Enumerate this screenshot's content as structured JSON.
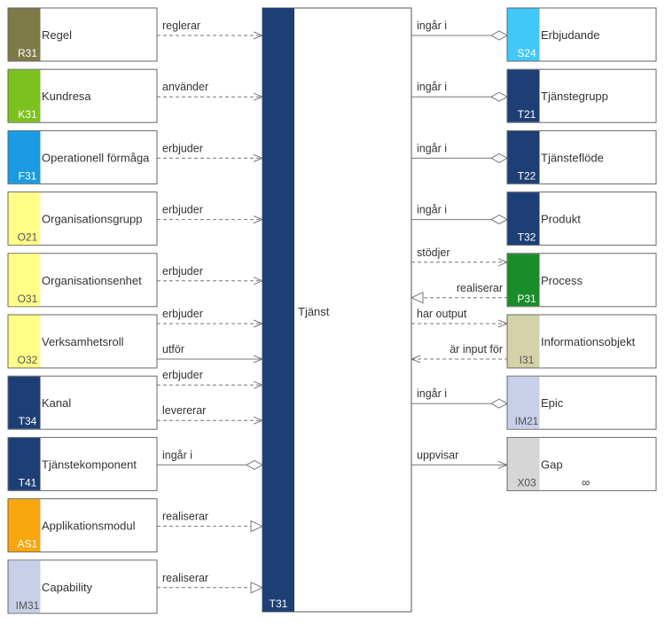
{
  "center": {
    "label": "Tjänst",
    "code": "T31",
    "color": "#1e3f75"
  },
  "left": [
    {
      "code": "R31",
      "label": "Regel",
      "color": "#7d7a48",
      "edges": [
        {
          "label": "reglerar",
          "type": "dashed-open"
        }
      ]
    },
    {
      "code": "K31",
      "label": "Kundresa",
      "color": "#7cc11d",
      "edges": [
        {
          "label": "använder",
          "type": "dashed-open"
        }
      ]
    },
    {
      "code": "F31",
      "label": "Operationell förmåga",
      "color": "#1a9be3",
      "edges": [
        {
          "label": "erbjuder",
          "type": "dashed-open"
        }
      ]
    },
    {
      "code": "O21",
      "label": "Organisationsgrupp",
      "color": "#ffff88",
      "dark": true,
      "edges": [
        {
          "label": "erbjuder",
          "type": "dashed-open"
        }
      ]
    },
    {
      "code": "O31",
      "label": "Organisationsenhet",
      "color": "#ffff88",
      "dark": true,
      "edges": [
        {
          "label": "erbjuder",
          "type": "dashed-open"
        }
      ]
    },
    {
      "code": "O32",
      "label": "Verksamhetsroll",
      "color": "#ffff88",
      "dark": true,
      "edges": [
        {
          "label": "erbjuder",
          "type": "dashed-open"
        },
        {
          "label": "utför",
          "type": "solid-open"
        }
      ]
    },
    {
      "code": "T34",
      "label": "Kanal",
      "color": "#1e3f75",
      "edges": [
        {
          "label": "erbjuder",
          "type": "dashed-open"
        },
        {
          "label": "levererar",
          "type": "dashed-open"
        }
      ]
    },
    {
      "code": "T41",
      "label": "Tjänstekomponent",
      "color": "#1e3f75",
      "edges": [
        {
          "label": "ingår i",
          "type": "solid-diamond"
        }
      ]
    },
    {
      "code": "AS1",
      "label": "Applikationsmodul",
      "color": "#f7a70d",
      "edges": [
        {
          "label": "realiserar",
          "type": "dashed-triangle"
        }
      ]
    },
    {
      "code": "IM31",
      "label": "Capability",
      "color": "#c8cfe8",
      "dark": true,
      "edges": [
        {
          "label": "realiserar",
          "type": "dashed-triangle"
        }
      ]
    }
  ],
  "right": [
    {
      "code": "S24",
      "label": "Erbjudande",
      "color": "#40c8f8",
      "edges": [
        {
          "label": "ingår i",
          "type": "solid-diamond"
        }
      ]
    },
    {
      "code": "T21",
      "label": "Tjänstegrupp",
      "color": "#1e3f75",
      "edges": [
        {
          "label": "ingår i",
          "type": "solid-diamond"
        }
      ]
    },
    {
      "code": "T22",
      "label": "Tjänsteflöde",
      "color": "#1e3f75",
      "edges": [
        {
          "label": "ingår i",
          "type": "solid-diamond"
        }
      ]
    },
    {
      "code": "T32",
      "label": "Produkt",
      "color": "#1e3f75",
      "edges": [
        {
          "label": "ingår i",
          "type": "solid-diamond"
        }
      ]
    },
    {
      "code": "P31",
      "label": "Process",
      "color": "#1a8d2a",
      "edges": [
        {
          "label": "stödjer",
          "type": "dashed-open-out"
        },
        {
          "label": "realiserar",
          "type": "dashed-triangle-in"
        }
      ]
    },
    {
      "code": "I31",
      "label": "Informationsobjekt",
      "color": "#d4d2a8",
      "dark": true,
      "edges": [
        {
          "label": "har output",
          "type": "dashed-open-out"
        },
        {
          "label": "är input för",
          "type": "dashed-open-in"
        }
      ]
    },
    {
      "code": "IM21",
      "label": "Epic",
      "color": "#c8cfe8",
      "dark": true,
      "edges": [
        {
          "label": "ingår i",
          "type": "solid-diamond"
        }
      ]
    },
    {
      "code": "X03",
      "label": "Gap",
      "color": "#d6d6d6",
      "dark": true,
      "symbol": "∞",
      "edges": [
        {
          "label": "uppvisar",
          "type": "solid-open-out"
        }
      ]
    }
  ]
}
